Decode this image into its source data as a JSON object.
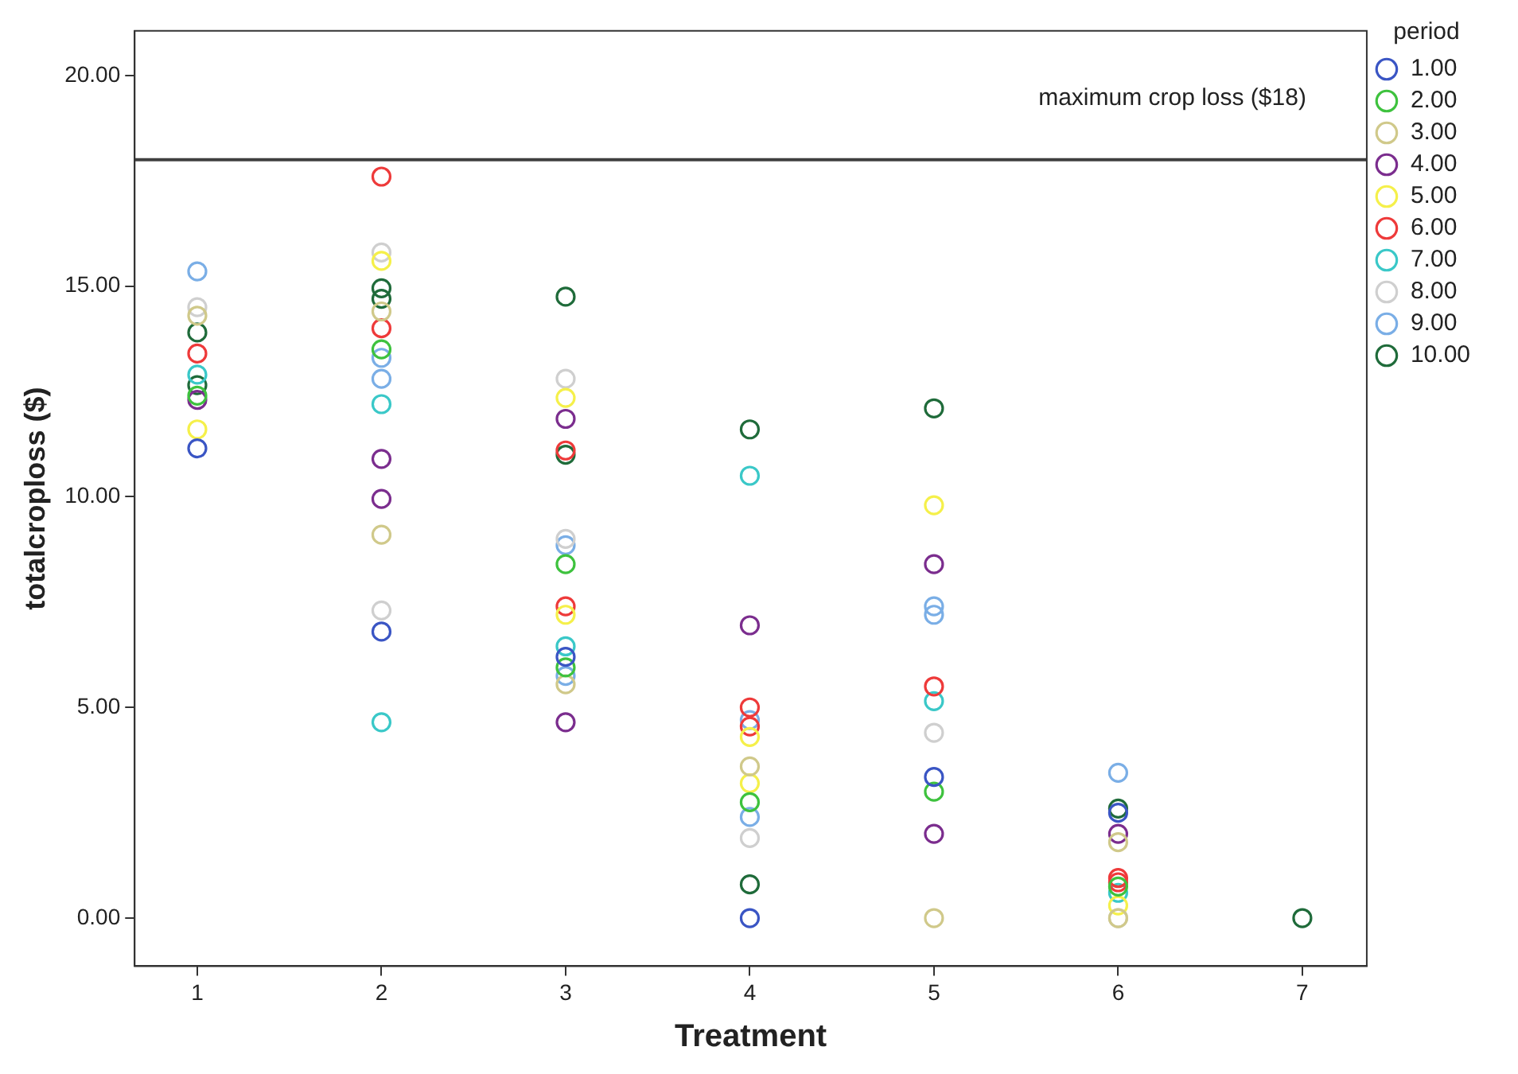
{
  "chart_data": {
    "type": "scatter",
    "xlabel": "Treatment",
    "ylabel": "totalcroploss ($)",
    "legend_title": "period",
    "legend": "top right",
    "grid": false,
    "marker": "circle",
    "xlim": [
      0.66,
      7.35
    ],
    "xticks": [
      1,
      2,
      3,
      4,
      5,
      6,
      7
    ],
    "ylim": [
      -1.14,
      21.06
    ],
    "yticks": [
      {
        "value": 0,
        "label": "0.00"
      },
      {
        "value": 5,
        "label": "5.00"
      },
      {
        "value": 10,
        "label": "10.00"
      },
      {
        "value": 15,
        "label": "15.00"
      },
      {
        "value": 20,
        "label": "20.00"
      }
    ],
    "ref_lines": [
      {
        "axis": "y",
        "value": 18,
        "label": "maximum crop loss ($18)",
        "color": "#404040"
      }
    ],
    "series": [
      {
        "name": "1.00",
        "color": "#3a55c4",
        "x": [
          1,
          2,
          3,
          4,
          5,
          6
        ],
        "values": [
          11.15,
          6.8,
          6.2,
          0,
          3.35,
          2.5
        ]
      },
      {
        "name": "2.00",
        "color": "#3ec23e",
        "x": [
          1,
          2,
          3,
          3,
          4,
          5,
          6
        ],
        "values": [
          12.4,
          13.5,
          8.4,
          5.95,
          2.75,
          3.0,
          0.75
        ]
      },
      {
        "name": "3.00",
        "color": "#d0c98a",
        "x": [
          1,
          2,
          2,
          3,
          4,
          5,
          6,
          6
        ],
        "values": [
          14.3,
          14.4,
          9.1,
          5.55,
          3.6,
          0,
          1.8,
          0
        ]
      },
      {
        "name": "4.00",
        "color": "#7b2d8e",
        "x": [
          1,
          2,
          2,
          3,
          3,
          4,
          5,
          5,
          6
        ],
        "values": [
          12.3,
          10.9,
          9.95,
          11.85,
          4.65,
          6.95,
          8.4,
          2.0,
          2.0
        ]
      },
      {
        "name": "5.00",
        "color": "#f5f04a",
        "x": [
          1,
          2,
          3,
          3,
          4,
          4,
          5,
          6
        ],
        "values": [
          11.6,
          15.6,
          12.35,
          7.2,
          4.3,
          3.2,
          9.8,
          0.3
        ]
      },
      {
        "name": "6.00",
        "color": "#ee3a3a",
        "x": [
          1,
          2,
          2,
          3,
          3,
          4,
          4,
          5,
          6,
          6
        ],
        "values": [
          13.4,
          17.6,
          14.0,
          11.1,
          7.4,
          5.0,
          4.55,
          5.5,
          0.95,
          0.85
        ]
      },
      {
        "name": "7.00",
        "color": "#3ac8c8",
        "x": [
          1,
          2,
          2,
          3,
          4,
          5,
          6
        ],
        "values": [
          12.9,
          12.2,
          4.65,
          6.45,
          10.5,
          5.15,
          0.6
        ]
      },
      {
        "name": "8.00",
        "color": "#cfcfcf",
        "x": [
          1,
          2,
          2,
          3,
          3,
          4,
          5,
          6
        ],
        "values": [
          14.5,
          15.8,
          7.3,
          12.8,
          9.0,
          1.9,
          4.4,
          0
        ]
      },
      {
        "name": "9.00",
        "color": "#7aaee6",
        "x": [
          1,
          2,
          2,
          3,
          3,
          4,
          4,
          5,
          5,
          6
        ],
        "values": [
          15.35,
          13.3,
          12.8,
          8.85,
          5.75,
          4.7,
          2.4,
          7.4,
          7.2,
          3.45
        ]
      },
      {
        "name": "10.00",
        "color": "#1f6b3a",
        "x": [
          1,
          1,
          2,
          2,
          3,
          3,
          4,
          4,
          5,
          6,
          7
        ],
        "values": [
          13.9,
          12.65,
          14.95,
          14.7,
          14.75,
          11.0,
          11.6,
          0.8,
          12.1,
          2.6,
          0
        ]
      }
    ]
  }
}
